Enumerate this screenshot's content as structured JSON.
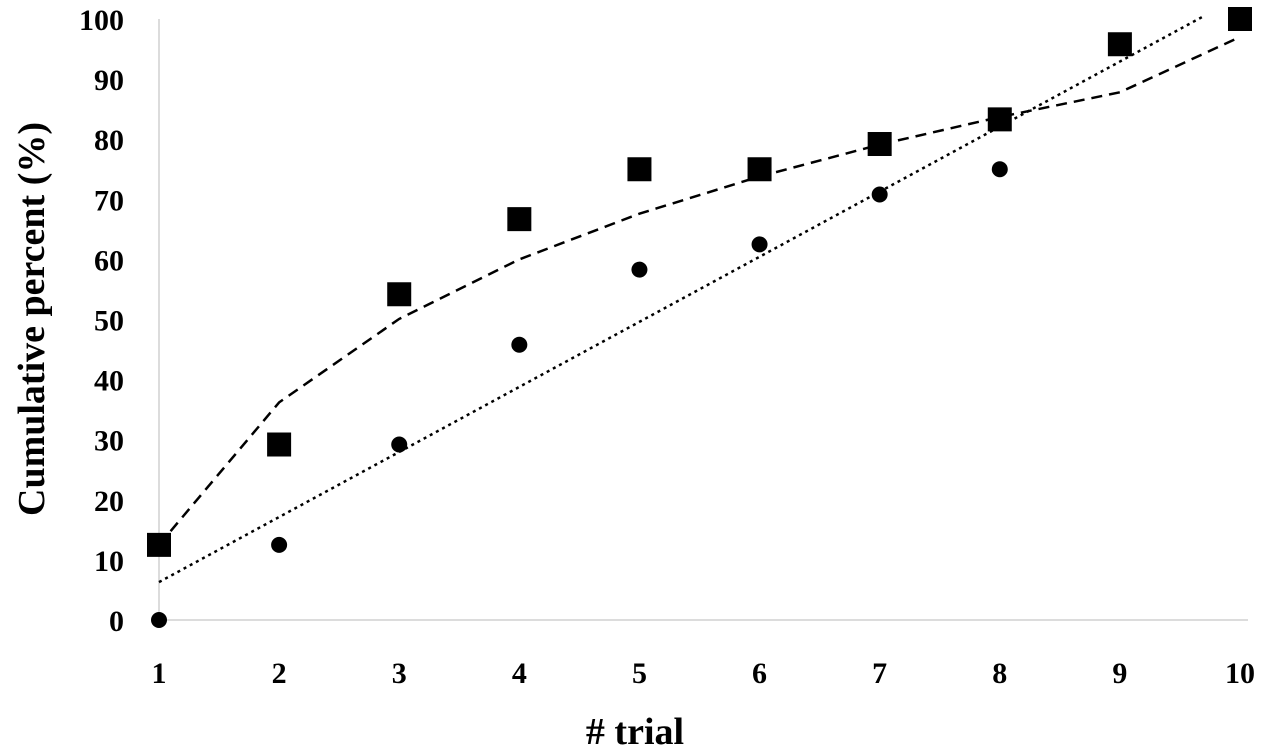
{
  "chart_data": {
    "type": "scatter",
    "xlabel": "# trial",
    "ylabel": "Cumulative percent (%)",
    "xlim": [
      1,
      10
    ],
    "ylim": [
      0,
      100
    ],
    "x_ticks": [
      "1",
      "2",
      "3",
      "4",
      "5",
      "6",
      "7",
      "8",
      "9",
      "10"
    ],
    "y_ticks": [
      "0",
      "10",
      "20",
      "30",
      "40",
      "50",
      "60",
      "70",
      "80",
      "90",
      "100"
    ],
    "grid": false,
    "legend": "none",
    "series": [
      {
        "marker": "square",
        "x": [
          1,
          2,
          3,
          4,
          5,
          6,
          7,
          8,
          9,
          10
        ],
        "y": [
          12.5,
          29.2,
          54.2,
          66.7,
          75.0,
          75.0,
          79.2,
          83.3,
          95.8,
          100
        ]
      },
      {
        "marker": "circle",
        "x": [
          1,
          2,
          3,
          4,
          5,
          6,
          7,
          8
        ],
        "y": [
          0,
          12.5,
          29.2,
          45.8,
          58.3,
          62.5,
          70.8,
          75.0
        ]
      }
    ],
    "trendlines": [
      {
        "style": "dashed",
        "kind": "logarithmic",
        "x": [
          1,
          2,
          3,
          4,
          5,
          6,
          7,
          8,
          9,
          10
        ],
        "y": [
          12.5,
          36.2,
          50.1,
          60.0,
          67.6,
          73.8,
          79.1,
          83.7,
          87.8,
          97.0
        ]
      },
      {
        "style": "dotted",
        "kind": "linear",
        "x": [
          1,
          9.7
        ],
        "y": [
          6.3,
          100.5
        ]
      }
    ]
  }
}
